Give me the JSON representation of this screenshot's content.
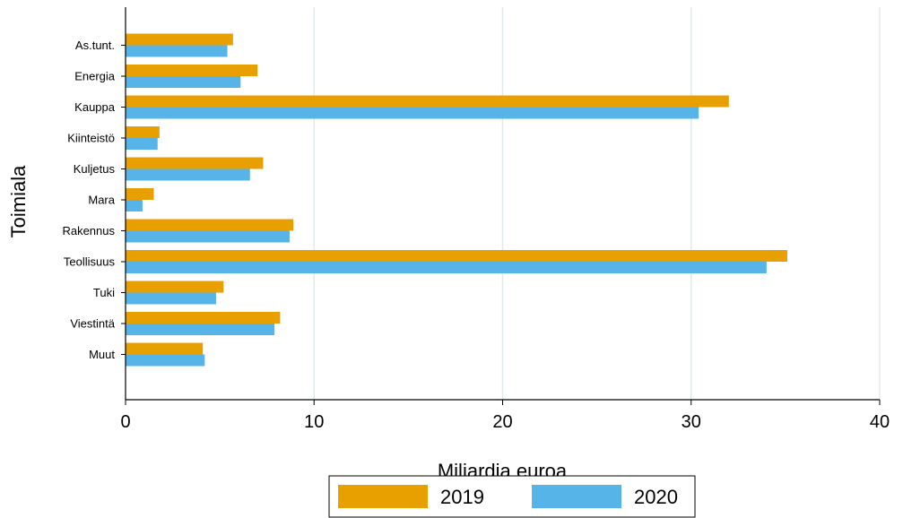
{
  "chart_data": {
    "type": "bar",
    "orientation": "horizontal",
    "title": "",
    "xlabel": "Miljardia euroa",
    "ylabel": "Toimiala",
    "xlim": [
      0,
      40
    ],
    "xticks": [
      0,
      10,
      20,
      30,
      40
    ],
    "grid": "vertical",
    "legend_position": "bottom",
    "categories": [
      "As.tunt.",
      "Energia",
      "Kauppa",
      "Kiinteistö",
      "Kuljetus",
      "Mara",
      "Rakennus",
      "Teollisuus",
      "Tuki",
      "Viestintä",
      "Muut"
    ],
    "series": [
      {
        "name": "2019",
        "color": "#e8a000",
        "values": [
          5.7,
          7.0,
          32.0,
          1.8,
          7.3,
          1.5,
          8.9,
          35.1,
          5.2,
          8.2,
          4.1
        ]
      },
      {
        "name": "2020",
        "color": "#56b4e9",
        "values": [
          5.4,
          6.1,
          30.4,
          1.7,
          6.6,
          0.9,
          8.7,
          34.0,
          4.8,
          7.9,
          4.2
        ]
      }
    ]
  }
}
